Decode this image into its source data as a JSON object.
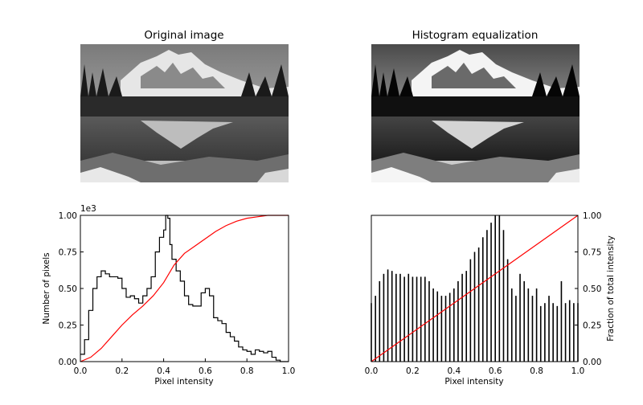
{
  "chart_data": [
    {
      "type": "image",
      "title": "Original image",
      "image_subject": "grayscale photograph of a snow-capped mountain reflected in a lake with conifer trees"
    },
    {
      "type": "image",
      "title": "Histogram equalization",
      "image_subject": "contrast-enhanced grayscale photograph of the same mountain lake scene"
    },
    {
      "type": "line",
      "xlabel": "Pixel intensity",
      "ylabel": "Number of pixels",
      "y_offset_label": "1e3",
      "xlim": [
        0,
        1
      ],
      "ylim": [
        0,
        1
      ],
      "x_ticks": [
        "0.0",
        "0.2",
        "0.4",
        "0.6",
        "0.8",
        "1.0"
      ],
      "y_ticks": [
        "0.00",
        "0.25",
        "0.50",
        "0.75",
        "1.00"
      ],
      "series": [
        {
          "kind": "histogram-step",
          "color": "#000000",
          "x": [
            0.0,
            0.02,
            0.04,
            0.06,
            0.08,
            0.1,
            0.12,
            0.14,
            0.16,
            0.18,
            0.2,
            0.22,
            0.24,
            0.26,
            0.28,
            0.3,
            0.32,
            0.34,
            0.36,
            0.38,
            0.4,
            0.41,
            0.42,
            0.43,
            0.44,
            0.46,
            0.48,
            0.5,
            0.52,
            0.54,
            0.56,
            0.58,
            0.6,
            0.62,
            0.64,
            0.66,
            0.68,
            0.7,
            0.72,
            0.74,
            0.76,
            0.78,
            0.8,
            0.82,
            0.84,
            0.86,
            0.88,
            0.9,
            0.92,
            0.94,
            0.96,
            1.0
          ],
          "y": [
            0.05,
            0.15,
            0.35,
            0.5,
            0.58,
            0.62,
            0.6,
            0.58,
            0.58,
            0.57,
            0.5,
            0.44,
            0.45,
            0.43,
            0.4,
            0.45,
            0.5,
            0.58,
            0.75,
            0.85,
            0.9,
            1.0,
            0.98,
            0.8,
            0.7,
            0.62,
            0.55,
            0.45,
            0.39,
            0.38,
            0.38,
            0.47,
            0.5,
            0.45,
            0.3,
            0.28,
            0.26,
            0.2,
            0.17,
            0.14,
            0.1,
            0.08,
            0.07,
            0.05,
            0.08,
            0.07,
            0.06,
            0.07,
            0.03,
            0.01,
            0.0,
            0.0
          ]
        },
        {
          "kind": "cdf",
          "color": "#ff0000",
          "x": [
            0.0,
            0.05,
            0.1,
            0.15,
            0.2,
            0.25,
            0.3,
            0.35,
            0.4,
            0.45,
            0.5,
            0.55,
            0.6,
            0.65,
            0.7,
            0.75,
            0.8,
            0.85,
            0.9,
            0.95,
            1.0
          ],
          "y": [
            0.0,
            0.03,
            0.09,
            0.17,
            0.25,
            0.32,
            0.38,
            0.45,
            0.54,
            0.66,
            0.74,
            0.79,
            0.84,
            0.89,
            0.93,
            0.96,
            0.98,
            0.99,
            1.0,
            1.0,
            1.0
          ]
        }
      ]
    },
    {
      "type": "line",
      "xlabel": "Pixel intensity",
      "ylabel": "Fraction of total intensity",
      "xlim": [
        0,
        1
      ],
      "ylim": [
        0,
        1
      ],
      "x_ticks": [
        "0.0",
        "0.2",
        "0.4",
        "0.6",
        "0.8",
        "1.0"
      ],
      "y_ticks": [
        "0.00",
        "0.25",
        "0.50",
        "0.75",
        "1.00"
      ],
      "series": [
        {
          "kind": "histogram-spikes",
          "color": "#000000",
          "x": [
            0.0,
            0.02,
            0.04,
            0.06,
            0.08,
            0.1,
            0.12,
            0.14,
            0.16,
            0.18,
            0.2,
            0.22,
            0.24,
            0.26,
            0.28,
            0.3,
            0.32,
            0.34,
            0.36,
            0.38,
            0.4,
            0.42,
            0.44,
            0.46,
            0.48,
            0.5,
            0.52,
            0.54,
            0.56,
            0.58,
            0.6,
            0.62,
            0.64,
            0.66,
            0.68,
            0.7,
            0.72,
            0.74,
            0.76,
            0.78,
            0.8,
            0.82,
            0.84,
            0.86,
            0.88,
            0.9,
            0.92,
            0.94,
            0.96,
            0.98,
            1.0
          ],
          "y": [
            0.4,
            0.45,
            0.55,
            0.6,
            0.63,
            0.62,
            0.6,
            0.6,
            0.58,
            0.6,
            0.58,
            0.58,
            0.58,
            0.58,
            0.55,
            0.5,
            0.48,
            0.45,
            0.45,
            0.47,
            0.5,
            0.55,
            0.6,
            0.62,
            0.7,
            0.75,
            0.78,
            0.85,
            0.9,
            0.95,
            1.0,
            1.0,
            0.9,
            0.7,
            0.5,
            0.45,
            0.6,
            0.55,
            0.5,
            0.45,
            0.5,
            0.38,
            0.4,
            0.45,
            0.4,
            0.38,
            0.55,
            0.4,
            0.42,
            0.4,
            0.4
          ]
        },
        {
          "kind": "cdf",
          "color": "#ff0000",
          "x": [
            0.0,
            0.25,
            0.5,
            0.75,
            1.0
          ],
          "y": [
            0.0,
            0.25,
            0.5,
            0.75,
            1.0
          ]
        }
      ]
    }
  ]
}
